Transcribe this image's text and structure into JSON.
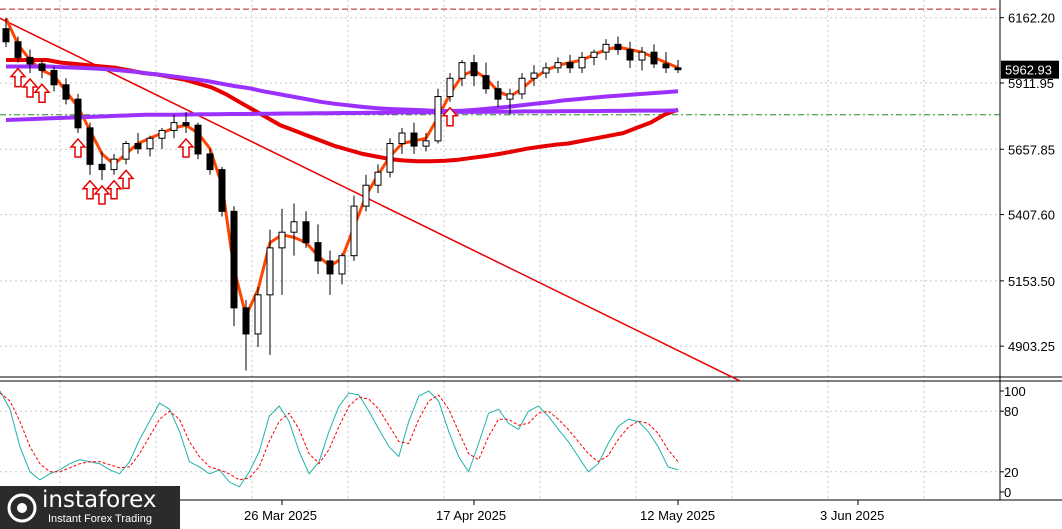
{
  "chart_data": [
    {
      "type": "candlestick",
      "title": "",
      "ylim": [
        4785,
        6230
      ],
      "y_ticks": [
        "6162.20",
        "5911.95",
        "5657.85",
        "5407.60",
        "5153.50",
        "4903.25"
      ],
      "y_tick_values": [
        6162.2,
        5911.95,
        5657.85,
        5407.6,
        5153.5,
        4903.25
      ],
      "current_price": "5962.93",
      "current_price_value": 5962.93,
      "x_labels": [
        "26 Mar 2025",
        "17 Apr 2025",
        "12 May 2025",
        "3 Jun 2025"
      ],
      "x_label_index": [
        23,
        39,
        56,
        71
      ],
      "horizontal_levels": [
        6195,
        5790
      ],
      "candles": [
        [
          6120,
          6160,
          6050,
          6070
        ],
        [
          6070,
          6090,
          5990,
          6010
        ],
        [
          6010,
          6040,
          5950,
          5985
        ],
        [
          5985,
          6000,
          5930,
          5960
        ],
        [
          5960,
          5975,
          5880,
          5905
        ],
        [
          5905,
          5930,
          5830,
          5850
        ],
        [
          5850,
          5870,
          5720,
          5740
        ],
        [
          5740,
          5760,
          5560,
          5600
        ],
        [
          5600,
          5650,
          5540,
          5580
        ],
        [
          5580,
          5640,
          5560,
          5620
        ],
        [
          5620,
          5690,
          5600,
          5680
        ],
        [
          5680,
          5720,
          5640,
          5660
        ],
        [
          5660,
          5710,
          5630,
          5700
        ],
        [
          5700,
          5740,
          5660,
          5730
        ],
        [
          5730,
          5790,
          5700,
          5760
        ],
        [
          5760,
          5800,
          5720,
          5750
        ],
        [
          5750,
          5760,
          5620,
          5640
        ],
        [
          5640,
          5660,
          5560,
          5580
        ],
        [
          5580,
          5590,
          5400,
          5420
        ],
        [
          5420,
          5440,
          4980,
          5050
        ],
        [
          5050,
          5080,
          4810,
          4950
        ],
        [
          4950,
          5130,
          4900,
          5100
        ],
        [
          5100,
          5350,
          4870,
          5280
        ],
        [
          5280,
          5430,
          5100,
          5340
        ],
        [
          5340,
          5450,
          5250,
          5380
        ],
        [
          5380,
          5420,
          5280,
          5300
        ],
        [
          5300,
          5370,
          5180,
          5230
        ],
        [
          5230,
          5270,
          5100,
          5180
        ],
        [
          5180,
          5260,
          5140,
          5250
        ],
        [
          5250,
          5480,
          5230,
          5440
        ],
        [
          5440,
          5560,
          5420,
          5520
        ],
        [
          5520,
          5600,
          5490,
          5570
        ],
        [
          5570,
          5700,
          5550,
          5680
        ],
        [
          5680,
          5740,
          5640,
          5720
        ],
        [
          5720,
          5760,
          5640,
          5670
        ],
        [
          5670,
          5720,
          5650,
          5690
        ],
        [
          5690,
          5890,
          5680,
          5860
        ],
        [
          5860,
          5950,
          5840,
          5930
        ],
        [
          5930,
          6000,
          5900,
          5990
        ],
        [
          5990,
          6020,
          5900,
          5940
        ],
        [
          5940,
          5990,
          5870,
          5890
        ],
        [
          5890,
          5920,
          5820,
          5850
        ],
        [
          5850,
          5890,
          5790,
          5870
        ],
        [
          5870,
          5950,
          5850,
          5930
        ],
        [
          5930,
          5980,
          5900,
          5950
        ],
        [
          5950,
          5990,
          5930,
          5970
        ],
        [
          5970,
          6010,
          5950,
          5990
        ],
        [
          5990,
          6020,
          5950,
          5970
        ],
        [
          5970,
          6030,
          5950,
          6010
        ],
        [
          6010,
          6040,
          5980,
          6030
        ],
        [
          6030,
          6080,
          6000,
          6060
        ],
        [
          6060,
          6090,
          6020,
          6040
        ],
        [
          6040,
          6070,
          5970,
          6000
        ],
        [
          6000,
          6050,
          5960,
          6030
        ],
        [
          6030,
          6060,
          5970,
          5985
        ],
        [
          5985,
          6030,
          5950,
          5970
        ],
        [
          5970,
          6000,
          5950,
          5963
        ]
      ],
      "series": [
        {
          "name": "",
          "color": "#ff4500",
          "values": [
            6160,
            6060,
            6000,
            5960,
            5940,
            5880,
            5820,
            5730,
            5640,
            5600,
            5640,
            5680,
            5700,
            5720,
            5740,
            5750,
            5720,
            5660,
            5520,
            5200,
            5020,
            5120,
            5300,
            5330,
            5320,
            5300,
            5250,
            5210,
            5240,
            5360,
            5480,
            5560,
            5630,
            5680,
            5690,
            5700,
            5780,
            5870,
            5940,
            5960,
            5930,
            5880,
            5860,
            5890,
            5930,
            5960,
            5980,
            5990,
            6000,
            6020,
            6040,
            6050,
            6040,
            6030,
            6010,
            5990,
            5970
          ]
        },
        {
          "name": "",
          "color": "#e60000",
          "values": [
            6000,
            6000,
            6000,
            6000,
            5990,
            5985,
            5980,
            5975,
            5970,
            5960,
            5950,
            5945,
            5935,
            5925,
            5910,
            5895,
            5870,
            5840,
            5810,
            5780,
            5750,
            5730,
            5710,
            5690,
            5670,
            5655,
            5640,
            5630,
            5620,
            5615,
            5612,
            5612,
            5614,
            5618,
            5625,
            5632,
            5640,
            5650,
            5660,
            5668,
            5675,
            5680,
            5690,
            5700,
            5710,
            5720,
            5740,
            5760,
            5790,
            5810
          ]
        },
        {
          "name": "",
          "color": "#9b30ff",
          "values": [
            5975,
            5975,
            5975,
            5975,
            5972,
            5970,
            5968,
            5965,
            5960,
            5955,
            5948,
            5942,
            5935,
            5928,
            5920,
            5910,
            5900,
            5892,
            5880,
            5870,
            5860,
            5850,
            5840,
            5832,
            5826,
            5820,
            5815,
            5812,
            5810,
            5808,
            5805,
            5804,
            5806,
            5810,
            5815,
            5820,
            5826,
            5832,
            5838,
            5845,
            5850,
            5855,
            5860,
            5864,
            5868,
            5872,
            5876,
            5880
          ]
        },
        {
          "name": "",
          "color": "#9b30ff",
          "values": [
            5770,
            5772,
            5774,
            5776,
            5778,
            5780,
            5782,
            5784,
            5786,
            5788,
            5790,
            5790,
            5790,
            5791,
            5792,
            5792,
            5793,
            5793,
            5794,
            5794,
            5795,
            5795,
            5796,
            5796,
            5797,
            5797,
            5798,
            5798,
            5799,
            5799,
            5800,
            5800,
            5801,
            5801,
            5801,
            5802,
            5802,
            5803,
            5803,
            5803,
            5804,
            5804,
            5804,
            5805,
            5805,
            5806,
            5806,
            5806,
            5807
          ]
        }
      ],
      "trendline": {
        "from_value": 6160,
        "to_value": 4770
      },
      "arrows_index": [
        1,
        2,
        3,
        6,
        7,
        8,
        9,
        10,
        15,
        37
      ]
    },
    {
      "type": "line",
      "title": "",
      "ylim": [
        0,
        100
      ],
      "y_ticks": [
        "100",
        "80",
        "20",
        "0"
      ],
      "y_tick_values": [
        100,
        80,
        20,
        0
      ],
      "series": [
        {
          "name": "",
          "color": "#20b2aa",
          "values": [
            100,
            82,
            45,
            20,
            12,
            18,
            22,
            28,
            32,
            30,
            28,
            22,
            18,
            30,
            52,
            70,
            88,
            82,
            60,
            30,
            25,
            18,
            22,
            10,
            5,
            20,
            40,
            75,
            85,
            70,
            40,
            18,
            30,
            60,
            85,
            98,
            96,
            80,
            62,
            45,
            35,
            70,
            95,
            100,
            90,
            60,
            35,
            20,
            48,
            78,
            82,
            68,
            62,
            80,
            85,
            75,
            62,
            50,
            35,
            20,
            28,
            48,
            65,
            72,
            70,
            60,
            45,
            25,
            22
          ]
        },
        {
          "name": "",
          "color": "#ff0000",
          "values": [
            98,
            90,
            70,
            45,
            28,
            20,
            20,
            24,
            28,
            30,
            30,
            27,
            24,
            25,
            38,
            55,
            72,
            80,
            72,
            50,
            35,
            25,
            22,
            18,
            12,
            14,
            25,
            50,
            70,
            78,
            62,
            38,
            28,
            42,
            65,
            85,
            94,
            92,
            82,
            66,
            50,
            48,
            72,
            90,
            96,
            82,
            60,
            38,
            32,
            55,
            72,
            72,
            66,
            68,
            78,
            80,
            72,
            62,
            50,
            38,
            30,
            36,
            52,
            64,
            70,
            68,
            58,
            42,
            30
          ]
        }
      ]
    }
  ],
  "logo": {
    "brand": "instaforex",
    "tagline": "Instant Forex Trading"
  },
  "colors": {
    "bull": "#ffffff",
    "bear": "#000000",
    "grid": "#c8c8c8",
    "trend": "#e60000"
  }
}
